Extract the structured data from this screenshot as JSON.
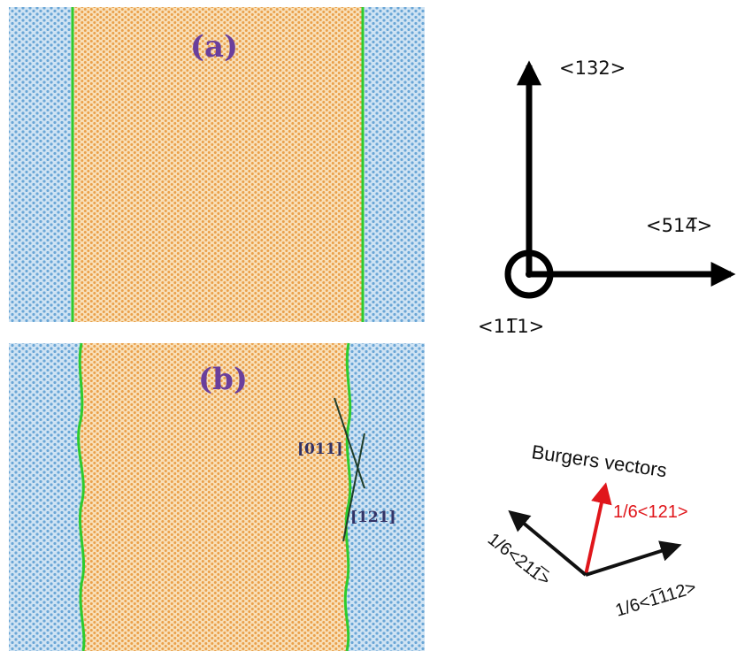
{
  "panels": [
    {
      "label": "(a)"
    },
    {
      "label": "(b)"
    }
  ],
  "interface_tags": {
    "upper": "[011]",
    "lower": "[121]"
  },
  "axes": {
    "vertical": "<132>",
    "horizontal": "<514̅>",
    "out_of_plane": "<11̅1>"
  },
  "burgers": {
    "title": "Burgers vectors",
    "vectors": [
      {
        "label": "1/6<121>",
        "color": "#e0161b"
      },
      {
        "label": "1/6<211̅>",
        "color": "#111111"
      },
      {
        "label": "1/6<1̅112>",
        "color": "#111111"
      }
    ]
  },
  "colors": {
    "matrix_phase": "#cfe3f3",
    "matrix_atoms": "#6aa6d6",
    "precipitate_phase": "#f7dcb4",
    "precipitate_atoms": "#eaa04a",
    "interface_line": "#2ecc2e",
    "arrow": "#000000",
    "red_arrow": "#e0161b",
    "panel_label": "#6a3f9c"
  }
}
